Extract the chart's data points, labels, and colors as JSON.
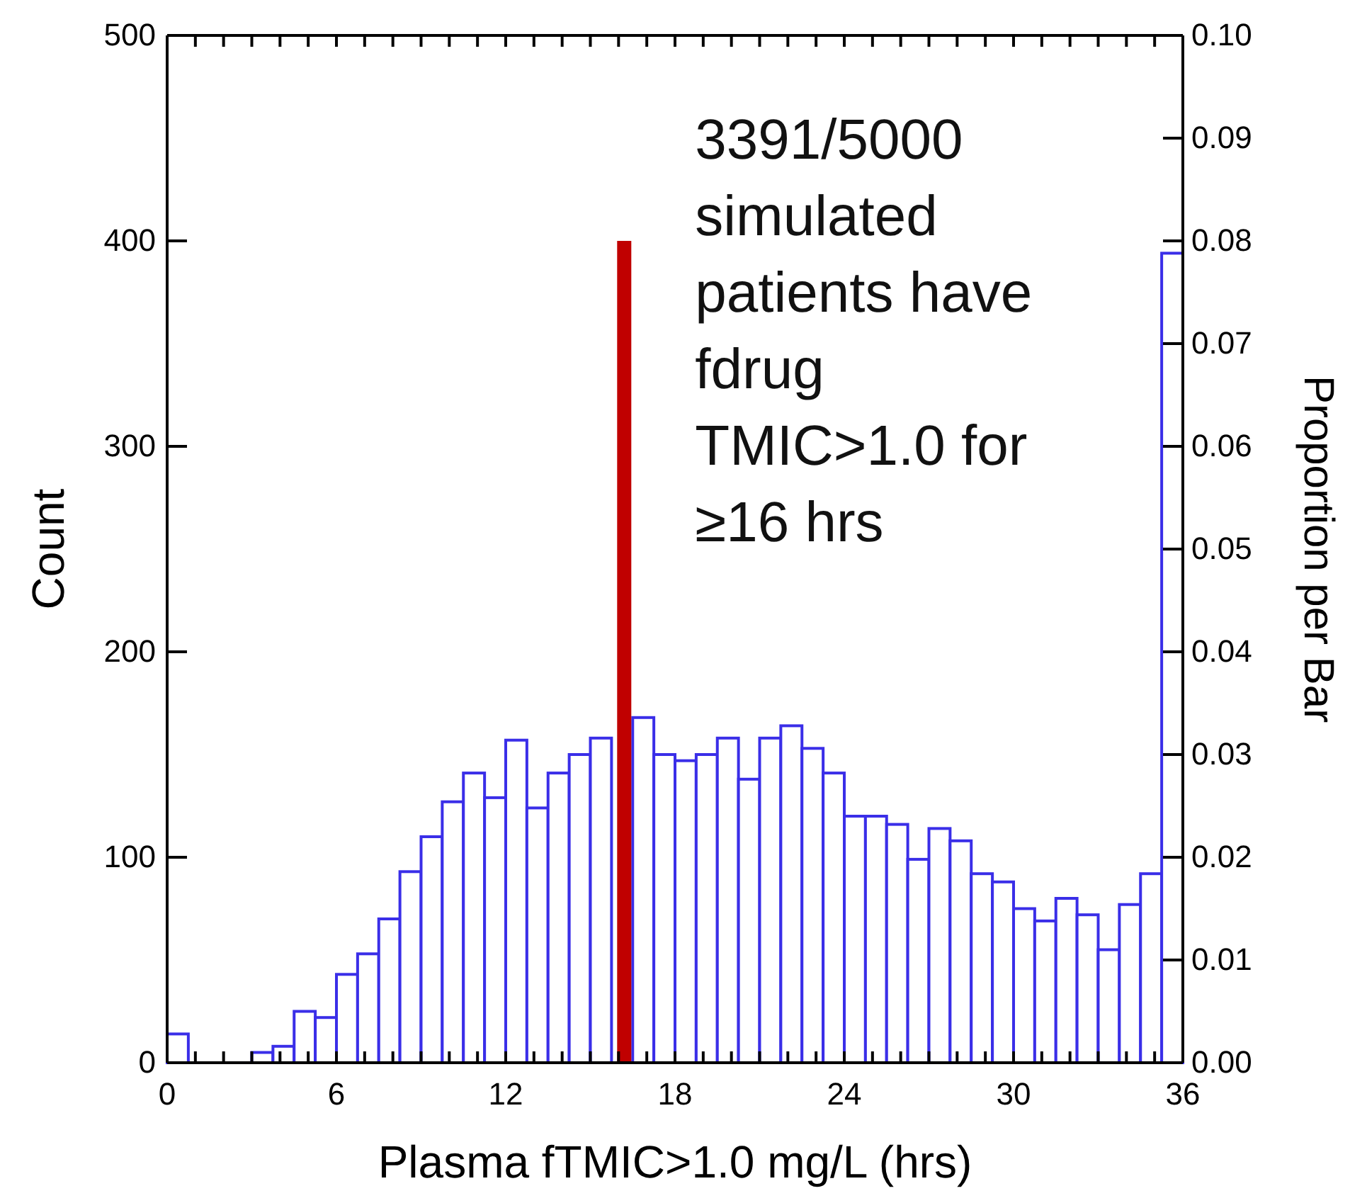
{
  "chart_data": {
    "type": "histogram",
    "xlabel": "Plasma fTMIC>1.0 mg/L (hrs)",
    "ylabel": "Count",
    "y2label": "Proportion per Bar",
    "bins": [
      0,
      0.75,
      1.5,
      2.25,
      3,
      3.75,
      4.5,
      5.25,
      6,
      6.75,
      7.5,
      8.25,
      9,
      9.75,
      10.5,
      11.25,
      12,
      12.75,
      13.5,
      14.25,
      15,
      15.75,
      16.5,
      17.25,
      18,
      18.75,
      19.5,
      20.25,
      21,
      21.75,
      22.5,
      23.25,
      24,
      24.75,
      25.5,
      26.25,
      27,
      27.75,
      28.5,
      29.25,
      30,
      30.75,
      31.5,
      32.25,
      33,
      33.75,
      34.5,
      35.25,
      36
    ],
    "values": [
      14,
      0,
      0,
      0,
      5,
      8,
      25,
      22,
      43,
      53,
      70,
      93,
      110,
      127,
      141,
      129,
      157,
      124,
      141,
      150,
      158,
      null,
      168,
      150,
      147,
      150,
      158,
      138,
      158,
      164,
      153,
      141,
      120,
      120,
      116,
      99,
      114,
      108,
      92,
      88,
      75,
      69,
      80,
      72,
      55,
      77,
      92,
      394
    ],
    "color": "#3a2ee8",
    "xlim": [
      0,
      36
    ],
    "xticks": [
      0,
      {
        "value": 1,
        "label": null
      },
      {
        "value": 2,
        "label": null
      },
      {
        "value": 3,
        "label": null
      },
      {
        "value": 4,
        "label": null
      },
      {
        "value": 5,
        "label": null
      },
      6,
      {
        "value": 7,
        "label": null
      },
      {
        "value": 8,
        "label": null
      },
      {
        "value": 9,
        "label": null
      },
      {
        "value": 10,
        "label": null
      },
      {
        "value": 11,
        "label": null
      },
      12,
      {
        "value": 13,
        "label": null
      },
      {
        "value": 14,
        "label": null
      },
      {
        "value": 15,
        "label": null
      },
      {
        "value": 16,
        "label": null
      },
      {
        "value": 17,
        "label": null
      },
      18,
      {
        "value": 19,
        "label": null
      },
      {
        "value": 20,
        "label": null
      },
      {
        "value": 21,
        "label": null
      },
      {
        "value": 22,
        "label": null
      },
      {
        "value": 23,
        "label": null
      },
      24,
      {
        "value": 25,
        "label": null
      },
      {
        "value": 26,
        "label": null
      },
      {
        "value": 27,
        "label": null
      },
      {
        "value": 28,
        "label": null
      },
      {
        "value": 29,
        "label": null
      },
      30,
      {
        "value": 31,
        "label": null
      },
      {
        "value": 32,
        "label": null
      },
      {
        "value": 33,
        "label": null
      },
      {
        "value": 34,
        "label": null
      },
      {
        "value": 35,
        "label": null
      },
      36
    ],
    "ylim": [
      0,
      500
    ],
    "yticks": [
      0,
      100,
      200,
      300,
      400,
      500
    ],
    "y2lim": [
      0,
      0.1
    ],
    "y2ticks": [
      {
        "value": 0,
        "label": "0.00"
      },
      0.01,
      0.02,
      0.03,
      0.04,
      0.05,
      0.06,
      0.07,
      0.08,
      0.09,
      {
        "value": 0.1,
        "label": "0.10"
      }
    ],
    "ref_lines": [
      {
        "axis": "x",
        "value": 16.2,
        "color": "#c00000"
      }
    ],
    "annotations": [
      {
        "text": "3391/5000\nsimulated\npatients have\nfdrug\nTMIC>1.0 for\n≥16 hrs",
        "x": 16.2,
        "y": 400
      }
    ],
    "grid": false
  }
}
